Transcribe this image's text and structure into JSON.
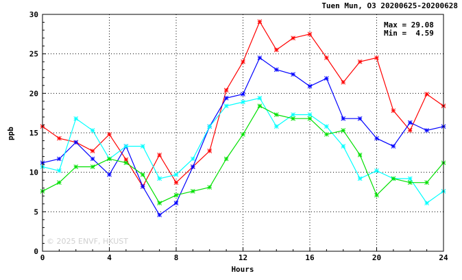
{
  "chart_data": {
    "type": "line",
    "title": "Tuen Mun, O3 20200625-20200628",
    "xlabel": "Hours",
    "ylabel": "ppb",
    "xlim": [
      0,
      24
    ],
    "ylim": [
      0,
      30
    ],
    "x_ticks": [
      "0",
      "4",
      "8",
      "12",
      "16",
      "20",
      "24"
    ],
    "y_ticks": [
      "0",
      "5",
      "10",
      "15",
      "20",
      "25",
      "30"
    ],
    "grid": true,
    "annotations": {
      "max": "Max = 29.08",
      "min": "Min =  4.59"
    },
    "watermark": "© 2025  ENVF, HKUST",
    "x": [
      0,
      1,
      2,
      3,
      4,
      5,
      6,
      7,
      8,
      9,
      10,
      11,
      12,
      13,
      14,
      15,
      16,
      17,
      18,
      19,
      20,
      21,
      22,
      23,
      24
    ],
    "series": [
      {
        "color": "#ff0000",
        "values": [
          15.8,
          14.3,
          13.8,
          12.7,
          14.8,
          11.6,
          8.2,
          12.2,
          8.7,
          10.7,
          12.7,
          20.4,
          24.0,
          29.08,
          25.5,
          27.0,
          27.5,
          24.5,
          21.4,
          24.0,
          24.5,
          17.8,
          15.3,
          19.9,
          18.4
        ]
      },
      {
        "color": "#0000ff",
        "values": [
          11.2,
          11.7,
          13.8,
          11.7,
          9.7,
          13.3,
          8.2,
          4.59,
          6.1,
          10.7,
          15.8,
          19.4,
          19.9,
          24.5,
          23.0,
          22.4,
          20.9,
          21.9,
          16.8,
          16.8,
          14.3,
          13.3,
          16.3,
          15.3,
          15.8
        ]
      },
      {
        "color": "#00ffff",
        "values": [
          10.7,
          10.2,
          16.8,
          15.3,
          11.7,
          13.3,
          13.3,
          9.2,
          9.7,
          11.7,
          15.8,
          18.4,
          18.9,
          19.4,
          15.8,
          17.3,
          17.3,
          15.8,
          13.3,
          9.2,
          10.2,
          9.2,
          9.2,
          6.1,
          7.6
        ]
      },
      {
        "color": "#00e000",
        "values": [
          7.6,
          8.7,
          10.7,
          10.7,
          11.7,
          11.2,
          9.7,
          6.1,
          7.1,
          7.6,
          8.1,
          11.7,
          14.8,
          18.4,
          17.3,
          16.8,
          16.8,
          14.8,
          15.3,
          12.2,
          7.1,
          9.2,
          8.7,
          8.7,
          11.2
        ]
      }
    ]
  }
}
